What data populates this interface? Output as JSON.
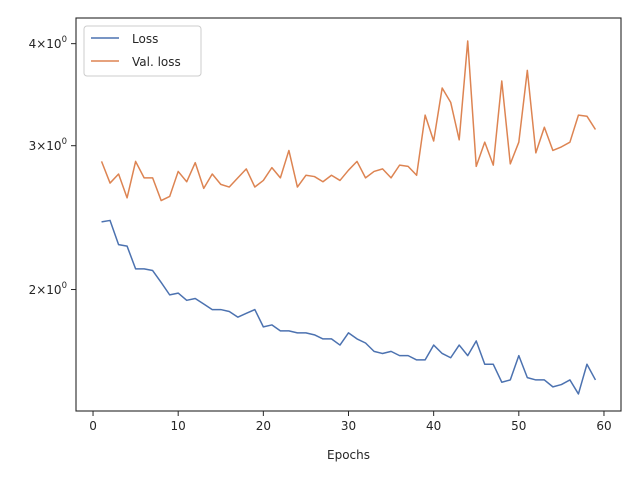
{
  "chart_data": {
    "type": "line",
    "xlabel": "Epochs",
    "ylabel": "",
    "yscale": "log",
    "xlim": [
      -2,
      62
    ],
    "ylim": [
      1.42,
      4.3
    ],
    "x_ticks": [
      0,
      10,
      20,
      30,
      40,
      50,
      60
    ],
    "x_tick_labels": [
      "0",
      "10",
      "20",
      "30",
      "40",
      "50",
      "60"
    ],
    "y_ticks": [
      2,
      3,
      4
    ],
    "y_tick_labels": [
      {
        "base": "2",
        "mult": "×",
        "exp_base": "10",
        "exp": "0"
      },
      {
        "base": "3",
        "mult": "×",
        "exp_base": "10",
        "exp": "0"
      },
      {
        "base": "4",
        "mult": "×",
        "exp_base": "10",
        "exp": "0"
      }
    ],
    "grid": false,
    "legend_position": "top-left",
    "x": [
      1,
      2,
      3,
      4,
      5,
      6,
      7,
      8,
      9,
      10,
      11,
      12,
      13,
      14,
      15,
      16,
      17,
      18,
      19,
      20,
      21,
      22,
      23,
      24,
      25,
      26,
      27,
      28,
      29,
      30,
      31,
      32,
      33,
      34,
      35,
      36,
      37,
      38,
      39,
      40,
      41,
      42,
      43,
      44,
      45,
      46,
      47,
      48,
      49,
      50,
      51,
      52,
      53,
      54,
      55,
      56,
      57,
      58,
      59
    ],
    "series": [
      {
        "name": "Loss",
        "color": "#4c72b0",
        "values": [
          2.42,
          2.43,
          2.27,
          2.26,
          2.12,
          2.12,
          2.11,
          2.04,
          1.97,
          1.98,
          1.94,
          1.95,
          1.92,
          1.89,
          1.89,
          1.88,
          1.85,
          1.87,
          1.89,
          1.8,
          1.81,
          1.78,
          1.78,
          1.77,
          1.77,
          1.76,
          1.74,
          1.74,
          1.71,
          1.77,
          1.74,
          1.72,
          1.68,
          1.67,
          1.68,
          1.66,
          1.66,
          1.64,
          1.64,
          1.71,
          1.67,
          1.65,
          1.71,
          1.66,
          1.73,
          1.62,
          1.62,
          1.54,
          1.55,
          1.66,
          1.56,
          1.55,
          1.55,
          1.52,
          1.53,
          1.55,
          1.49,
          1.62,
          1.55
        ]
      },
      {
        "name": "Val. loss",
        "color": "#dd8452",
        "values": [
          2.87,
          2.7,
          2.77,
          2.59,
          2.87,
          2.74,
          2.74,
          2.57,
          2.6,
          2.79,
          2.71,
          2.86,
          2.66,
          2.77,
          2.69,
          2.67,
          2.74,
          2.81,
          2.67,
          2.72,
          2.82,
          2.74,
          2.96,
          2.67,
          2.76,
          2.75,
          2.71,
          2.76,
          2.72,
          2.8,
          2.87,
          2.74,
          2.79,
          2.81,
          2.74,
          2.84,
          2.83,
          2.76,
          3.27,
          3.04,
          3.53,
          3.39,
          3.05,
          4.03,
          2.83,
          3.03,
          2.84,
          3.6,
          2.85,
          3.03,
          3.71,
          2.94,
          3.16,
          2.96,
          2.99,
          3.03,
          3.27,
          3.26,
          3.14
        ]
      }
    ]
  }
}
